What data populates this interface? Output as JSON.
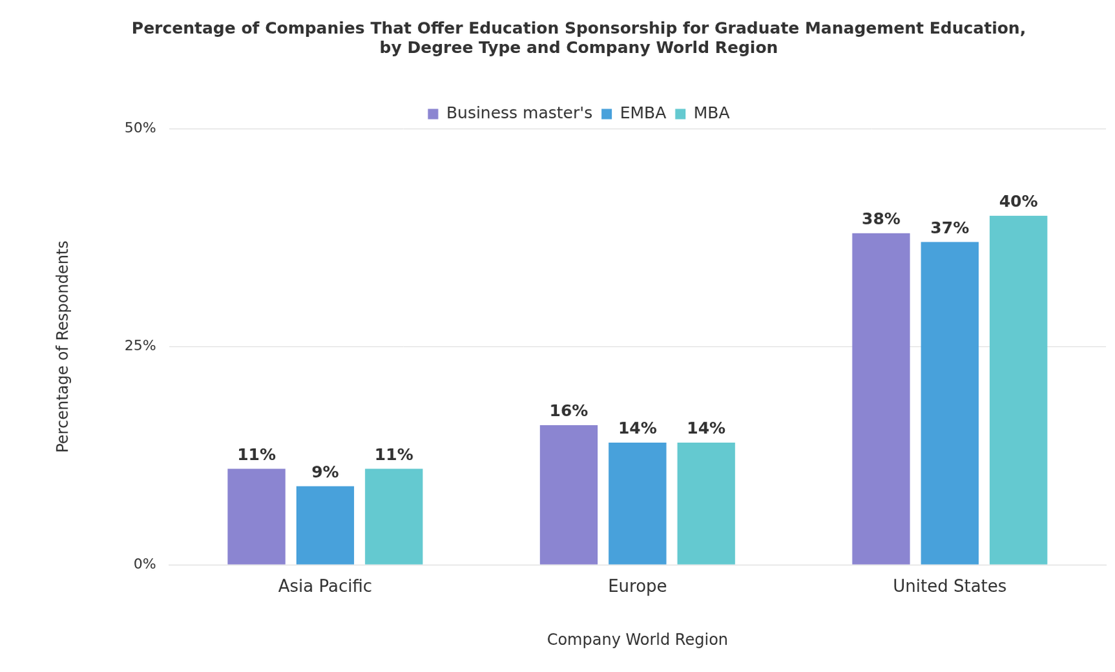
{
  "chart_data": {
    "type": "bar",
    "title": [
      "Percentage of Companies That Offer Education Sponsorship for Graduate Management Education,",
      "by Degree Type and Company World Region"
    ],
    "x_label": "Company World Region",
    "y_label": "Percentage of Respondents",
    "categories": [
      "Asia Pacific",
      "Europe",
      "United States"
    ],
    "series": [
      {
        "name": "Business master's",
        "color": "#8b85d1",
        "values": [
          11,
          16,
          38
        ],
        "value_labels": [
          "11%",
          "16%",
          "38%"
        ]
      },
      {
        "name": "EMBA",
        "color": "#48a1db",
        "values": [
          9,
          14,
          37
        ],
        "value_labels": [
          "9%",
          "14%",
          "37%"
        ]
      },
      {
        "name": "MBA",
        "color": "#64c9d0",
        "values": [
          11,
          14,
          40
        ],
        "value_labels": [
          "11%",
          "14%",
          "40%"
        ]
      }
    ],
    "ylim": [
      0,
      50
    ],
    "yticks": [
      {
        "value": 0,
        "label": "0%"
      },
      {
        "value": 25,
        "label": "25%"
      },
      {
        "value": 50,
        "label": "50%"
      }
    ],
    "grid": true,
    "legend": "top",
    "data_labels": true
  }
}
